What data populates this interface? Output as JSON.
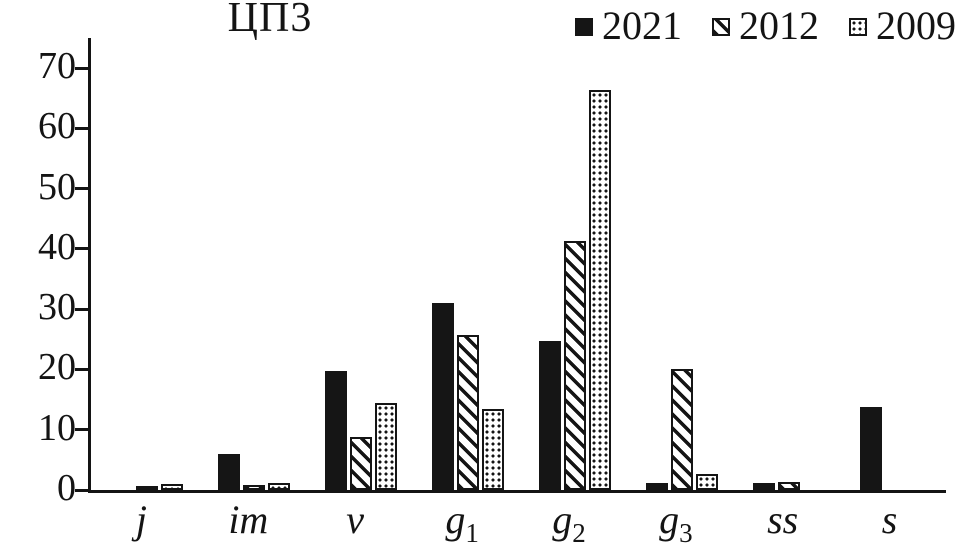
{
  "chart_data": {
    "type": "bar",
    "title": "ЦП3",
    "xlabel": "",
    "ylabel": "",
    "grid": false,
    "legend_position": "top-right",
    "ylim": [
      0,
      75
    ],
    "yticks": [
      0,
      10,
      20,
      30,
      40,
      50,
      60,
      70
    ],
    "colors": {
      "bar": "#151515",
      "axis": "#141414",
      "background": "#ffffff"
    },
    "categories": [
      {
        "base": "j",
        "sub": ""
      },
      {
        "base": "im",
        "sub": ""
      },
      {
        "base": "v",
        "sub": ""
      },
      {
        "base": "g",
        "sub": "1"
      },
      {
        "base": "g",
        "sub": "2"
      },
      {
        "base": "g",
        "sub": "3"
      },
      {
        "base": "ss",
        "sub": ""
      },
      {
        "base": "s",
        "sub": ""
      }
    ],
    "series": [
      {
        "name": "2021",
        "pattern": "solid",
        "swatch_icon": "solid-black-square-icon",
        "values": [
          0,
          5.9,
          19.7,
          31.0,
          24.7,
          1.2,
          1.2,
          13.7
        ]
      },
      {
        "name": "2012",
        "pattern": "hatch",
        "swatch_icon": "diagonal-hatch-square-icon",
        "values": [
          0.7,
          0.8,
          8.8,
          25.7,
          41.4,
          20.0,
          1.4,
          0
        ]
      },
      {
        "name": "2009",
        "pattern": "dots",
        "swatch_icon": "dotted-square-icon",
        "values": [
          1.0,
          1.2,
          14.5,
          13.4,
          66.4,
          2.7,
          0,
          0
        ]
      }
    ]
  }
}
